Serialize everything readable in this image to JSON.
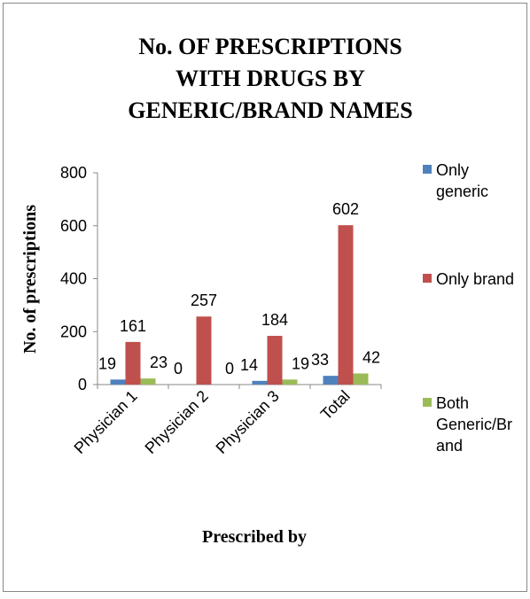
{
  "chart_data": {
    "type": "bar",
    "title": [
      "No. OF PRESCRIPTIONS",
      "WITH DRUGS BY",
      "GENERIC/BRAND NAMES"
    ],
    "y_label": "No. of prescriptions",
    "x_label": "Prescribed by",
    "categories": [
      "Physician 1",
      "Physician 2",
      "Physician 3",
      "Total"
    ],
    "series": [
      {
        "name": "Only generic",
        "color": "#4f81bd",
        "values": [
          19,
          0,
          14,
          33
        ]
      },
      {
        "name": "Only brand",
        "color": "#c0504d",
        "values": [
          161,
          257,
          184,
          602
        ]
      },
      {
        "name": "Both Generic/Brand",
        "color": "#9bbb59",
        "values": [
          23,
          0,
          19,
          42
        ]
      }
    ],
    "ylim": [
      0,
      800
    ],
    "yticks": [
      0,
      200,
      400,
      600,
      800
    ],
    "legend": "right"
  }
}
